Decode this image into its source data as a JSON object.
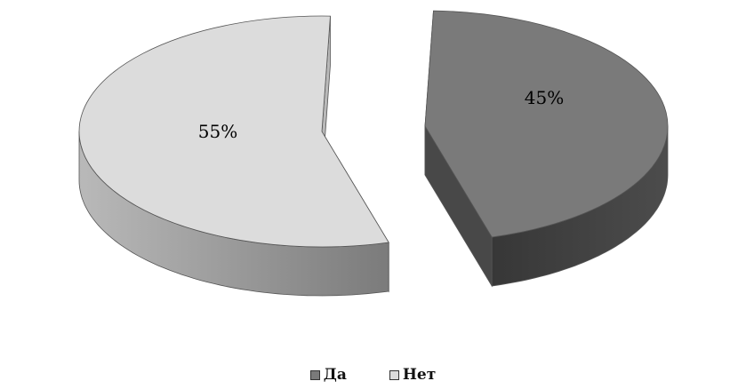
{
  "chart_data": {
    "type": "pie",
    "title": "",
    "legend_position": "bottom",
    "slices": [
      {
        "name": "Да",
        "value": 45,
        "label": "45%",
        "color": "#7a7a7a",
        "side_color": "#454545",
        "exploded": true
      },
      {
        "name": "Нет",
        "value": 55,
        "label": "55%",
        "color": "#dcdcdc",
        "side_color": "#b0b0b0",
        "exploded": true
      }
    ],
    "legend": [
      {
        "label": "Да",
        "color": "#7a7a7a"
      },
      {
        "label": "Нет",
        "color": "#dcdcdc"
      }
    ]
  }
}
